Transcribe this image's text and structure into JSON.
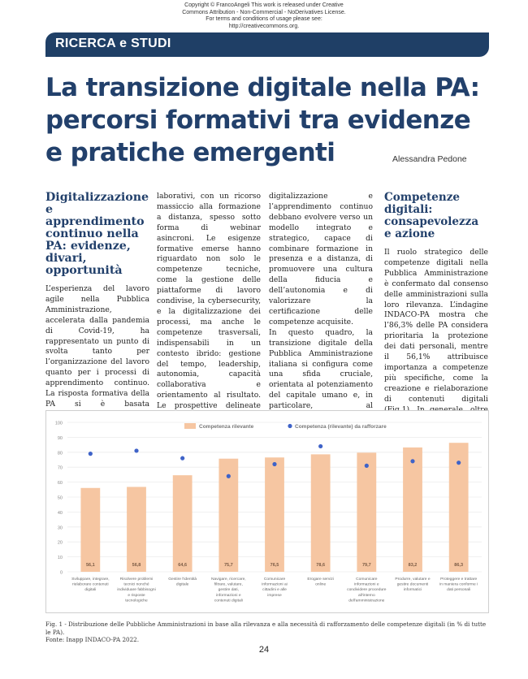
{
  "copyright": {
    "lines": [
      "Copyright © FrancoAngeli This work is released under Creative",
      "Commons Attribution - Non-Commercial - NoDerivatives License.",
      "For terms and conditions of usage please see:",
      "http://creativecommons.org."
    ]
  },
  "section": {
    "label": "RICERCA e STUDI",
    "color": "#1f3f66"
  },
  "article": {
    "title": "La transizione digitale nella PA: percorsi formativi tra evidenze e pratiche emergenti",
    "author": "Alessandra Pedone",
    "heading1": "Digitalizzazione e apprendimento continuo nella PA: evidenze, divari, opportunità",
    "col1_text": "L’esperienza del lavoro agile nella Pubblica Amministrazione, accelerata dalla pandemia di Covid-19, ha rappresentato un punto di svolta tanto per l’organizzazione del lavoro quanto per i processi di apprendimento continuo. La risposta formativa della PA si è basata prevalentemente su interventi di alfabetizzazione digitale e sull’uso di strumenti col-",
    "col2_text": "laborativi, con un ricorso massiccio alla formazione a distanza, spesso sotto forma di webinar asincroni. Le esigenze formative emerse hanno riguardato non solo le competenze tecniche, come la gestione delle piattaforme di lavoro condivise, la cybersecurity, e la digitalizzazione dei processi, ma anche le competenze trasversali, indispensabili in un contesto ibrido: gestione del tempo, leadership, autonomia, capacità collaborativa e orientamento al risultato. Le prospettive delineate dalla ricerca INAPP suggeriscono che, nella Pubblica Amministrazione, la",
    "col3_text_a": "digitalizzazione e l’apprendimento continuo debbano evolvere verso un modello integrato e strategico, capace di combinare formazione in presenza e a distanza, di promuovere una cultura della fiducia e dell’autonomia e di valorizzare la certificazione delle competenze acquisite.",
    "col3_text_b": "In questo quadro, la transizione digitale della Pubblica Amministrazione italiana si configura come una sfida cruciale, orientata al potenziamento del capitale umano e, in particolare, al rafforzamento diffuso delle competenze digitali del personale.",
    "heading2": "Competenze digitali: consapevolezza e azione",
    "col4_text": "Il ruolo strategico delle competenze digitali nella Pubblica Amministrazione è confermato dal consenso delle amministrazioni sulla loro rilevanza. L’indagine INDACO-PA mostra che l’86,3% delle PA considera prioritaria la protezione dei dati personali, mentre il 56,1% attribuisce importanza a competenze più specifiche, come la creazione e rielaborazione di contenuti digitali (Fig.1). In generale, oltre due terzi delle amministra-"
  },
  "chart_data": {
    "type": "bar",
    "legend_position": "top",
    "grid": true,
    "ylim": [
      0,
      100
    ],
    "yticks": [
      "100",
      "90",
      "80",
      "70",
      "60",
      "50",
      "40",
      "30",
      "20",
      "10",
      "0"
    ],
    "categories": [
      [
        "Sviluppare, integrare,",
        "rielaborare contenuti",
        "digitali"
      ],
      [
        "Risolvere problemi",
        "tecnici nonché",
        "individuare fabbisogni",
        "e risposte",
        "tecnologiche"
      ],
      [
        "Gestire l'identità",
        "digitale"
      ],
      [
        "Navigare, ricercare,",
        "filtrare, valutare,",
        "gestire dati,",
        "informazioni e",
        "contenuti digitali"
      ],
      [
        "Comunicare",
        "informazioni ai",
        "cittadini e alle",
        "imprese"
      ],
      [
        "Erogare servizi",
        "online"
      ],
      [
        "Comunicare",
        "informazioni e",
        "condividere procedure",
        "all'interno",
        "dell'amministrazione"
      ],
      [
        "Produrre, valutare e",
        "gestire documenti",
        "informatici"
      ],
      [
        "Proteggere e trattare",
        "in maniera conforme i",
        "dati personali"
      ]
    ],
    "series": [
      {
        "name": "Competenza rilevante",
        "type": "bar",
        "color": "#f6c6a2",
        "values": [
          56.1,
          56.8,
          64.6,
          75.7,
          76.5,
          78.6,
          79.7,
          83.2,
          86.3
        ],
        "labels": [
          "56,1",
          "56,8",
          "64,6",
          "75,7",
          "76,5",
          "78,6",
          "79,7",
          "83,2",
          "86,3"
        ]
      },
      {
        "name": "Competenza (rilevante) da rafforzare",
        "type": "scatter",
        "color": "#3f63c8",
        "values": [
          79,
          81,
          76,
          64,
          72,
          84,
          71,
          74,
          73
        ]
      }
    ]
  },
  "caption": {
    "line1": "Fig. 1 - Distribuzione delle Pubbliche Amministrazioni in base alla rilevanza e alla necessità di rafforzamento delle competenze digitali (in % di tutte le PA).",
    "line2": "Fonte: Inapp INDACO-PA 2022."
  },
  "page_number": "24"
}
